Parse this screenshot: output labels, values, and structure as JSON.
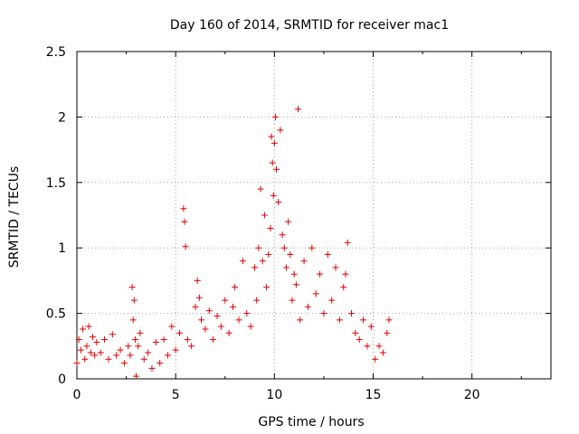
{
  "chart_data": {
    "type": "scatter",
    "title": "Day 160 of 2014, SRMTID for receiver mac1",
    "xlabel": "GPS time / hours",
    "ylabel": "SRMTID / TECUs",
    "xlim": [
      0,
      24
    ],
    "ylim": [
      0,
      2.5
    ],
    "xticks": [
      0,
      5,
      10,
      15,
      20
    ],
    "yticks": [
      0,
      0.5,
      1,
      1.5,
      2,
      2.5
    ],
    "ytick_labels": [
      "0",
      "0.5",
      "1",
      "1.5",
      "2",
      "2.5"
    ],
    "grid": true,
    "marker": "+",
    "marker_color": "#e00000",
    "series": [
      {
        "name": "SRMTID",
        "x": [
          0.0,
          0.1,
          0.2,
          0.3,
          0.4,
          0.5,
          0.6,
          0.7,
          0.8,
          0.9,
          1.0,
          1.2,
          1.4,
          1.6,
          1.8,
          2.0,
          2.2,
          2.4,
          2.6,
          2.7,
          2.8,
          2.85,
          2.9,
          2.95,
          3.0,
          3.1,
          3.2,
          3.4,
          3.6,
          3.8,
          4.0,
          4.2,
          4.4,
          4.6,
          4.8,
          5.0,
          5.2,
          5.4,
          5.45,
          5.5,
          5.6,
          5.8,
          6.0,
          6.1,
          6.2,
          6.3,
          6.5,
          6.7,
          6.9,
          7.1,
          7.3,
          7.5,
          7.7,
          7.9,
          8.0,
          8.2,
          8.4,
          8.6,
          8.8,
          9.0,
          9.1,
          9.2,
          9.3,
          9.4,
          9.5,
          9.6,
          9.7,
          9.8,
          9.85,
          9.9,
          9.95,
          10.0,
          10.05,
          10.1,
          10.2,
          10.3,
          10.4,
          10.5,
          10.6,
          10.7,
          10.8,
          10.9,
          11.0,
          11.1,
          11.2,
          11.3,
          11.5,
          11.7,
          11.9,
          12.1,
          12.3,
          12.5,
          12.7,
          12.9,
          13.1,
          13.3,
          13.5,
          13.6,
          13.7,
          13.9,
          14.1,
          14.3,
          14.5,
          14.7,
          14.9,
          15.1,
          15.3,
          15.5,
          15.7,
          15.8
        ],
        "y": [
          0.12,
          0.3,
          0.22,
          0.38,
          0.15,
          0.25,
          0.4,
          0.2,
          0.32,
          0.18,
          0.28,
          0.2,
          0.3,
          0.15,
          0.34,
          0.18,
          0.22,
          0.12,
          0.25,
          0.18,
          0.7,
          0.45,
          0.6,
          0.3,
          0.02,
          0.25,
          0.35,
          0.15,
          0.2,
          0.08,
          0.28,
          0.12,
          0.3,
          0.18,
          0.4,
          0.22,
          0.35,
          1.3,
          1.2,
          1.01,
          0.3,
          0.25,
          0.55,
          0.75,
          0.62,
          0.45,
          0.38,
          0.52,
          0.3,
          0.48,
          0.4,
          0.6,
          0.35,
          0.55,
          0.7,
          0.45,
          0.9,
          0.5,
          0.4,
          0.85,
          0.6,
          1.0,
          1.45,
          0.9,
          1.25,
          0.7,
          0.95,
          1.15,
          1.85,
          1.65,
          1.4,
          1.8,
          2.0,
          1.6,
          1.35,
          1.9,
          1.1,
          1.0,
          0.85,
          1.2,
          0.95,
          0.6,
          0.8,
          0.72,
          2.06,
          0.45,
          0.9,
          0.55,
          1.0,
          0.65,
          0.8,
          0.5,
          0.95,
          0.6,
          0.85,
          0.45,
          0.7,
          0.8,
          1.04,
          0.5,
          0.35,
          0.3,
          0.45,
          0.25,
          0.4,
          0.15,
          0.25,
          0.2,
          0.35,
          0.45
        ]
      }
    ]
  }
}
